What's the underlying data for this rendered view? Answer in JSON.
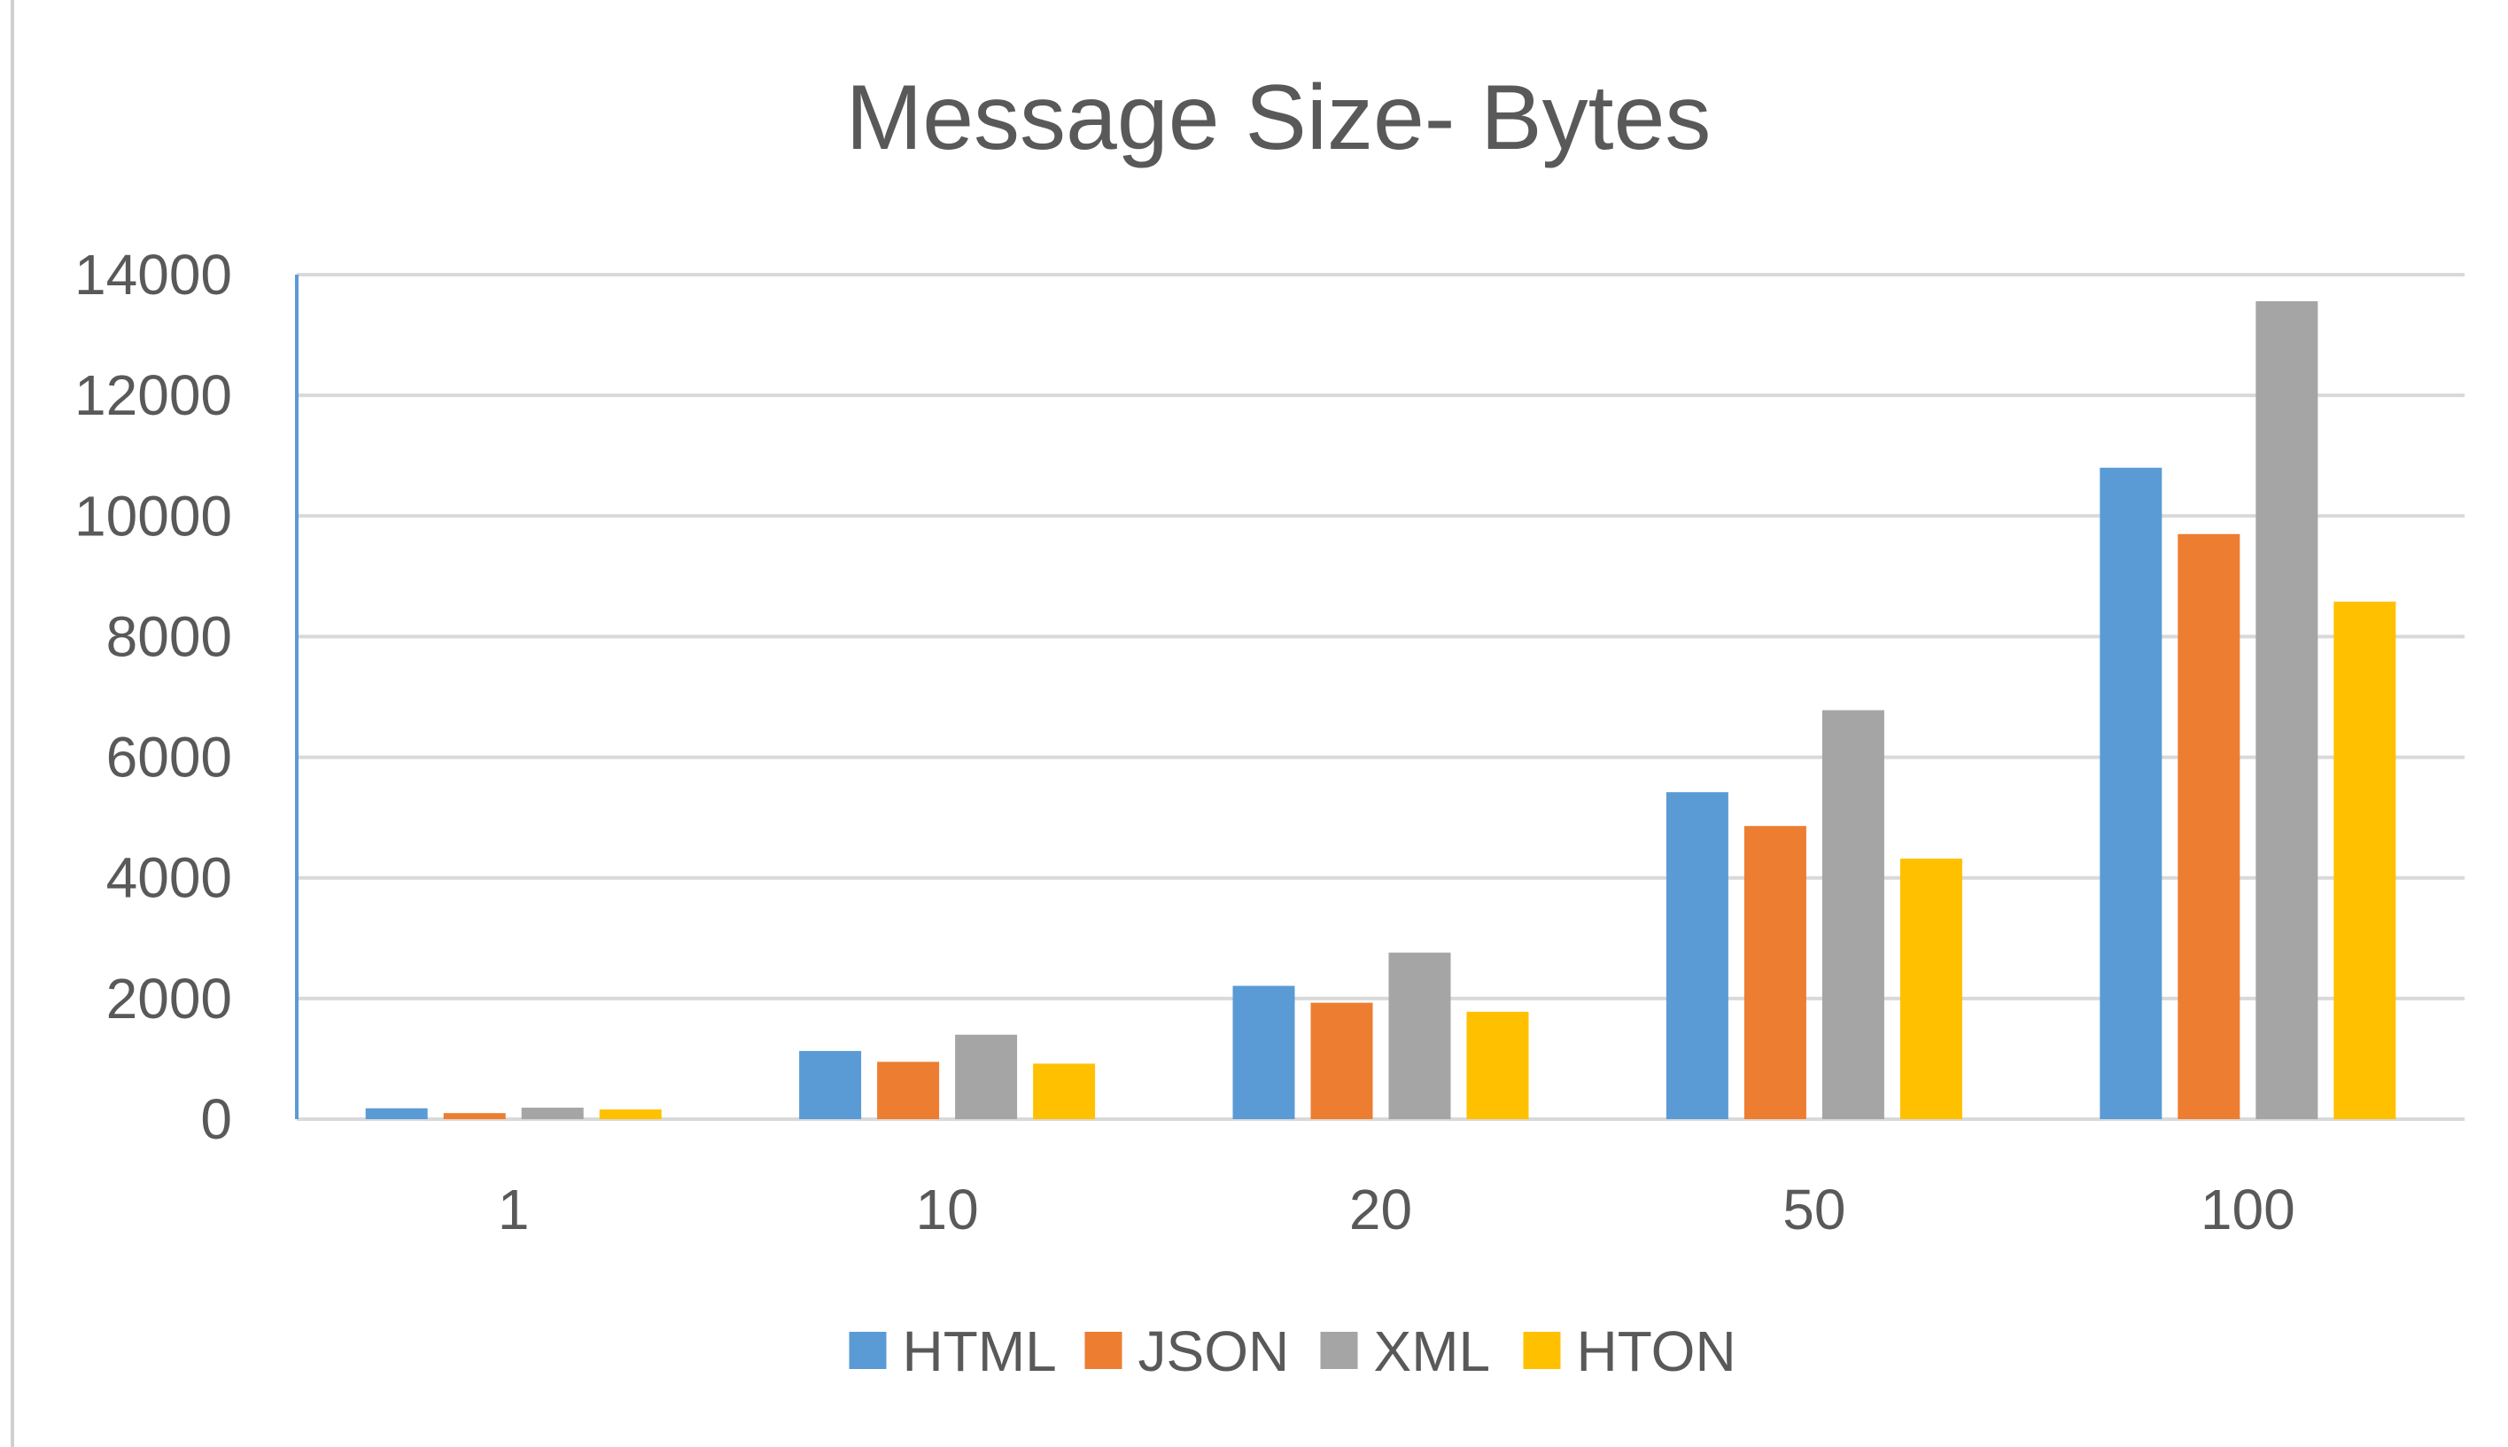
{
  "chart_data": {
    "type": "bar",
    "title": "Message Size- Bytes",
    "xlabel": "",
    "ylabel": "",
    "categories": [
      "1",
      "10",
      "20",
      "50",
      "100"
    ],
    "series": [
      {
        "name": "HTML",
        "color": "#5b9bd5",
        "values": [
          180,
          1130,
          2210,
          5420,
          10800
        ]
      },
      {
        "name": "JSON",
        "color": "#ed7d31",
        "values": [
          100,
          950,
          1930,
          4860,
          9700
        ]
      },
      {
        "name": "XML",
        "color": "#a5a5a5",
        "values": [
          190,
          1400,
          2760,
          6780,
          13560
        ]
      },
      {
        "name": "HTON",
        "color": "#ffc000",
        "values": [
          160,
          920,
          1780,
          4320,
          8580
        ]
      }
    ],
    "yticks": [
      "0",
      "2000",
      "4000",
      "6000",
      "8000",
      "10000",
      "12000",
      "14000"
    ],
    "ylim": [
      0,
      14000
    ],
    "grid": true,
    "legend_position": "bottom"
  }
}
